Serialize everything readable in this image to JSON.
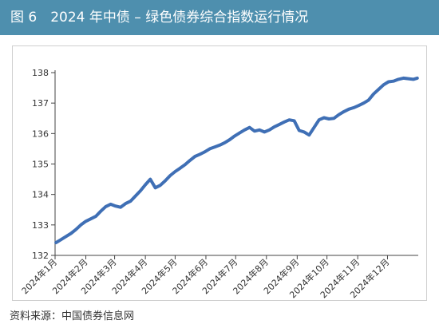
{
  "figure": {
    "title": "图 6　2024 年中债 – 绿色债券综合指数运行情况",
    "source": "资料来源：中国债券信息网"
  },
  "colors": {
    "title_bg": "#4e8fae",
    "series": "#3f6fb5",
    "axis": "#444444",
    "frame": "#cfcfcf"
  },
  "chart_data": {
    "type": "line",
    "title": "",
    "xlabel": "",
    "ylabel": "",
    "ylim": [
      132,
      138
    ],
    "yticks": [
      "132",
      "133",
      "134",
      "135",
      "136",
      "137",
      "138"
    ],
    "xticks": [
      "2024年1月",
      "2024年2月",
      "2024年3月",
      "2024年4月",
      "2024年5月",
      "2024年6月",
      "2024年7月",
      "2024年8月",
      "2024年9月",
      "2024年10月",
      "2024年11月",
      "2024年12月"
    ],
    "grid": false,
    "legend": "none",
    "series": [
      {
        "x": [
          "2024-01-02",
          "2024-01-07",
          "2024-01-12",
          "2024-01-17",
          "2024-01-22",
          "2024-01-27",
          "2024-02-01",
          "2024-02-06",
          "2024-02-11",
          "2024-02-16",
          "2024-02-21",
          "2024-02-26",
          "2024-03-02",
          "2024-03-07",
          "2024-03-12",
          "2024-03-17",
          "2024-03-22",
          "2024-03-27",
          "2024-04-01",
          "2024-04-06",
          "2024-04-11",
          "2024-04-16",
          "2024-04-21",
          "2024-04-26",
          "2024-05-01",
          "2024-05-06",
          "2024-05-11",
          "2024-05-16",
          "2024-05-21",
          "2024-05-26",
          "2024-05-31",
          "2024-06-05",
          "2024-06-10",
          "2024-06-15",
          "2024-06-20",
          "2024-06-25",
          "2024-06-30",
          "2024-07-05",
          "2024-07-10",
          "2024-07-15",
          "2024-07-20",
          "2024-07-25",
          "2024-07-30",
          "2024-08-04",
          "2024-08-09",
          "2024-08-14",
          "2024-08-19",
          "2024-08-24",
          "2024-08-29",
          "2024-09-03",
          "2024-09-08",
          "2024-09-13",
          "2024-09-18",
          "2024-09-23",
          "2024-09-28",
          "2024-10-03",
          "2024-10-08",
          "2024-10-13",
          "2024-10-18",
          "2024-10-23",
          "2024-10-28",
          "2024-11-02",
          "2024-11-07",
          "2024-11-12",
          "2024-11-17",
          "2024-11-22",
          "2024-11-27",
          "2024-12-02",
          "2024-12-07",
          "2024-12-12",
          "2024-12-17",
          "2024-12-22",
          "2024-12-27",
          "2024-12-31"
        ],
        "values": [
          132.42,
          132.52,
          132.62,
          132.72,
          132.85,
          133.0,
          133.12,
          133.2,
          133.28,
          133.45,
          133.6,
          133.68,
          133.62,
          133.58,
          133.7,
          133.78,
          133.95,
          134.12,
          134.32,
          134.5,
          134.22,
          134.3,
          134.45,
          134.62,
          134.75,
          134.86,
          134.98,
          135.12,
          135.25,
          135.32,
          135.4,
          135.5,
          135.56,
          135.62,
          135.7,
          135.8,
          135.92,
          136.02,
          136.12,
          136.2,
          136.08,
          136.12,
          136.05,
          136.12,
          136.22,
          136.3,
          136.38,
          136.45,
          136.42,
          136.1,
          136.05,
          135.95,
          136.2,
          136.45,
          136.52,
          136.48,
          136.5,
          136.62,
          136.72,
          136.8,
          136.85,
          136.92,
          137.0,
          137.1,
          137.3,
          137.45,
          137.6,
          137.7,
          137.72,
          137.78,
          137.82,
          137.8,
          137.78,
          137.82
        ]
      }
    ]
  }
}
